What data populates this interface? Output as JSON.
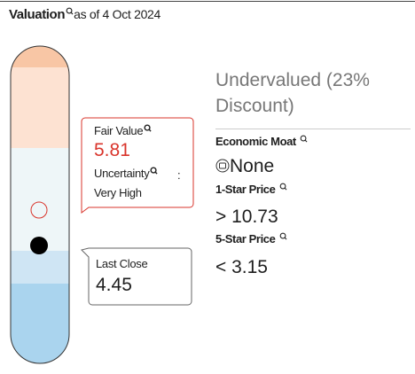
{
  "header": {
    "title": "Valuation",
    "as_of": "as of 4 Oct 2024"
  },
  "fair_value": {
    "label": "Fair Value",
    "value": "5.81",
    "uncertainty_label": "Uncertainty",
    "uncertainty_separator": ":",
    "uncertainty_value": "Very High"
  },
  "last_close": {
    "label": "Last Close",
    "value": "4.45"
  },
  "assessment": "Undervalued (23% Discount)",
  "economic_moat": {
    "label": "Economic Moat",
    "value": "None"
  },
  "one_star_price": {
    "label": "1-Star Price",
    "symbol": ">",
    "value": "10.73"
  },
  "five_star_price": {
    "label": "5-Star Price",
    "symbol": "<",
    "value": "3.15"
  }
}
